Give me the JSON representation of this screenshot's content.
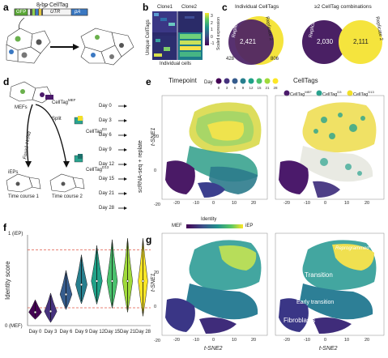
{
  "panels": {
    "a": {
      "label": "a",
      "construct_title": "8-bp CellTag",
      "construct_parts": [
        "GFP",
        "UTR",
        "pA"
      ]
    },
    "b": {
      "label": "b",
      "columns": [
        "Clone1",
        "Clone2"
      ],
      "ylabel": "Unique CellTags",
      "xlabel": "Individual cells",
      "colorbar_label": "Scaled expression",
      "colorbar_ticks": [
        "3",
        "2",
        "1",
        "0",
        "-1"
      ]
    },
    "c": {
      "label": "c",
      "left_title": "Individual CellTags",
      "right_title": "≥2 CellTag combinations",
      "left_venn": {
        "rep1_label": "Replicate 1",
        "rep2_label": "Replicate 2",
        "overlap": "2,421",
        "only1": "428",
        "only2": "806"
      },
      "right_venn": {
        "rep1_label": "Replicate 1",
        "rep2_label": "Replicate 2",
        "only1": "2,030",
        "only2": "2,111"
      }
    },
    "d": {
      "label": "d",
      "mefs": "MEFs",
      "celltag_mef": "CellTag",
      "celltag_mef_sup": "MEF",
      "split": "Split",
      "factors": "Foxa1-Hnf4α",
      "celltag_d3": "CellTag",
      "celltag_d3_sup": "D3",
      "celltag_d13": "CellTag",
      "celltag_d13_sup": "D13",
      "ieps": "iEPs",
      "course1": "Time course 1",
      "course2": "Time course 2",
      "days": [
        "Day 0",
        "Day 3",
        "Day 6",
        "Day 9",
        "Day 12",
        "Day 15",
        "Day 21",
        "Day 28"
      ],
      "side_label": "scRNA-seq + replate"
    },
    "e": {
      "label": "e",
      "timepoint_title": "Timepoint",
      "day_label": "Day",
      "day_values": [
        "0",
        "3",
        "6",
        "9",
        "12",
        "15",
        "21",
        "28"
      ],
      "day_colors": [
        "#440154",
        "#46327e",
        "#365c8d",
        "#277f8e",
        "#1fa187",
        "#4ac16d",
        "#a0da39",
        "#fde725"
      ],
      "celltags_title": "CellTags",
      "celltag_legend": [
        {
          "name": "CellTag",
          "sup": "MEF",
          "color": "#4b1a6b"
        },
        {
          "name": "CellTag",
          "sup": "D3",
          "color": "#2aa38f"
        },
        {
          "name": "CellTag",
          "sup": "D13",
          "color": "#f2e028"
        }
      ],
      "ylabel": "t-SNE1",
      "xticks": [
        "-20",
        "-10",
        "0",
        "10",
        "20"
      ],
      "yticks": [
        "20",
        "0",
        "-20"
      ]
    },
    "f": {
      "label": "f",
      "ylabel": "Identity score",
      "ytop": "1 (iEP)",
      "ybottom": "0 (MEF)",
      "chart_data": {
        "type": "violin",
        "categories": [
          "Day 0",
          "Day 3",
          "Day 6",
          "Day 9",
          "Day 12",
          "Day 15",
          "Day 21",
          "Day 28"
        ],
        "medians": [
          0.15,
          0.16,
          0.35,
          0.46,
          0.5,
          0.5,
          0.5,
          0.5
        ],
        "colors": [
          "#440154",
          "#46327e",
          "#365c8d",
          "#277f8e",
          "#1fa187",
          "#4ac16d",
          "#a0da39",
          "#fde725"
        ],
        "reference_lines": [
          0.2,
          0.85
        ],
        "reference_line_color": "#e05a4a",
        "ylim": [
          0,
          1
        ]
      }
    },
    "g": {
      "label": "g",
      "colorbar_title": "Identity",
      "colorbar_left": "MEF",
      "colorbar_right": "iEP",
      "xlabel": "t-SNE2",
      "ylabel": "t-SNE1",
      "xticks": [
        "-20",
        "-10",
        "0",
        "10",
        "20"
      ],
      "yticks": [
        "20",
        "0",
        "-20"
      ],
      "annotations": [
        "Reprogrammed",
        "Transition",
        "Early transition",
        "Fibroblasts"
      ]
    }
  }
}
